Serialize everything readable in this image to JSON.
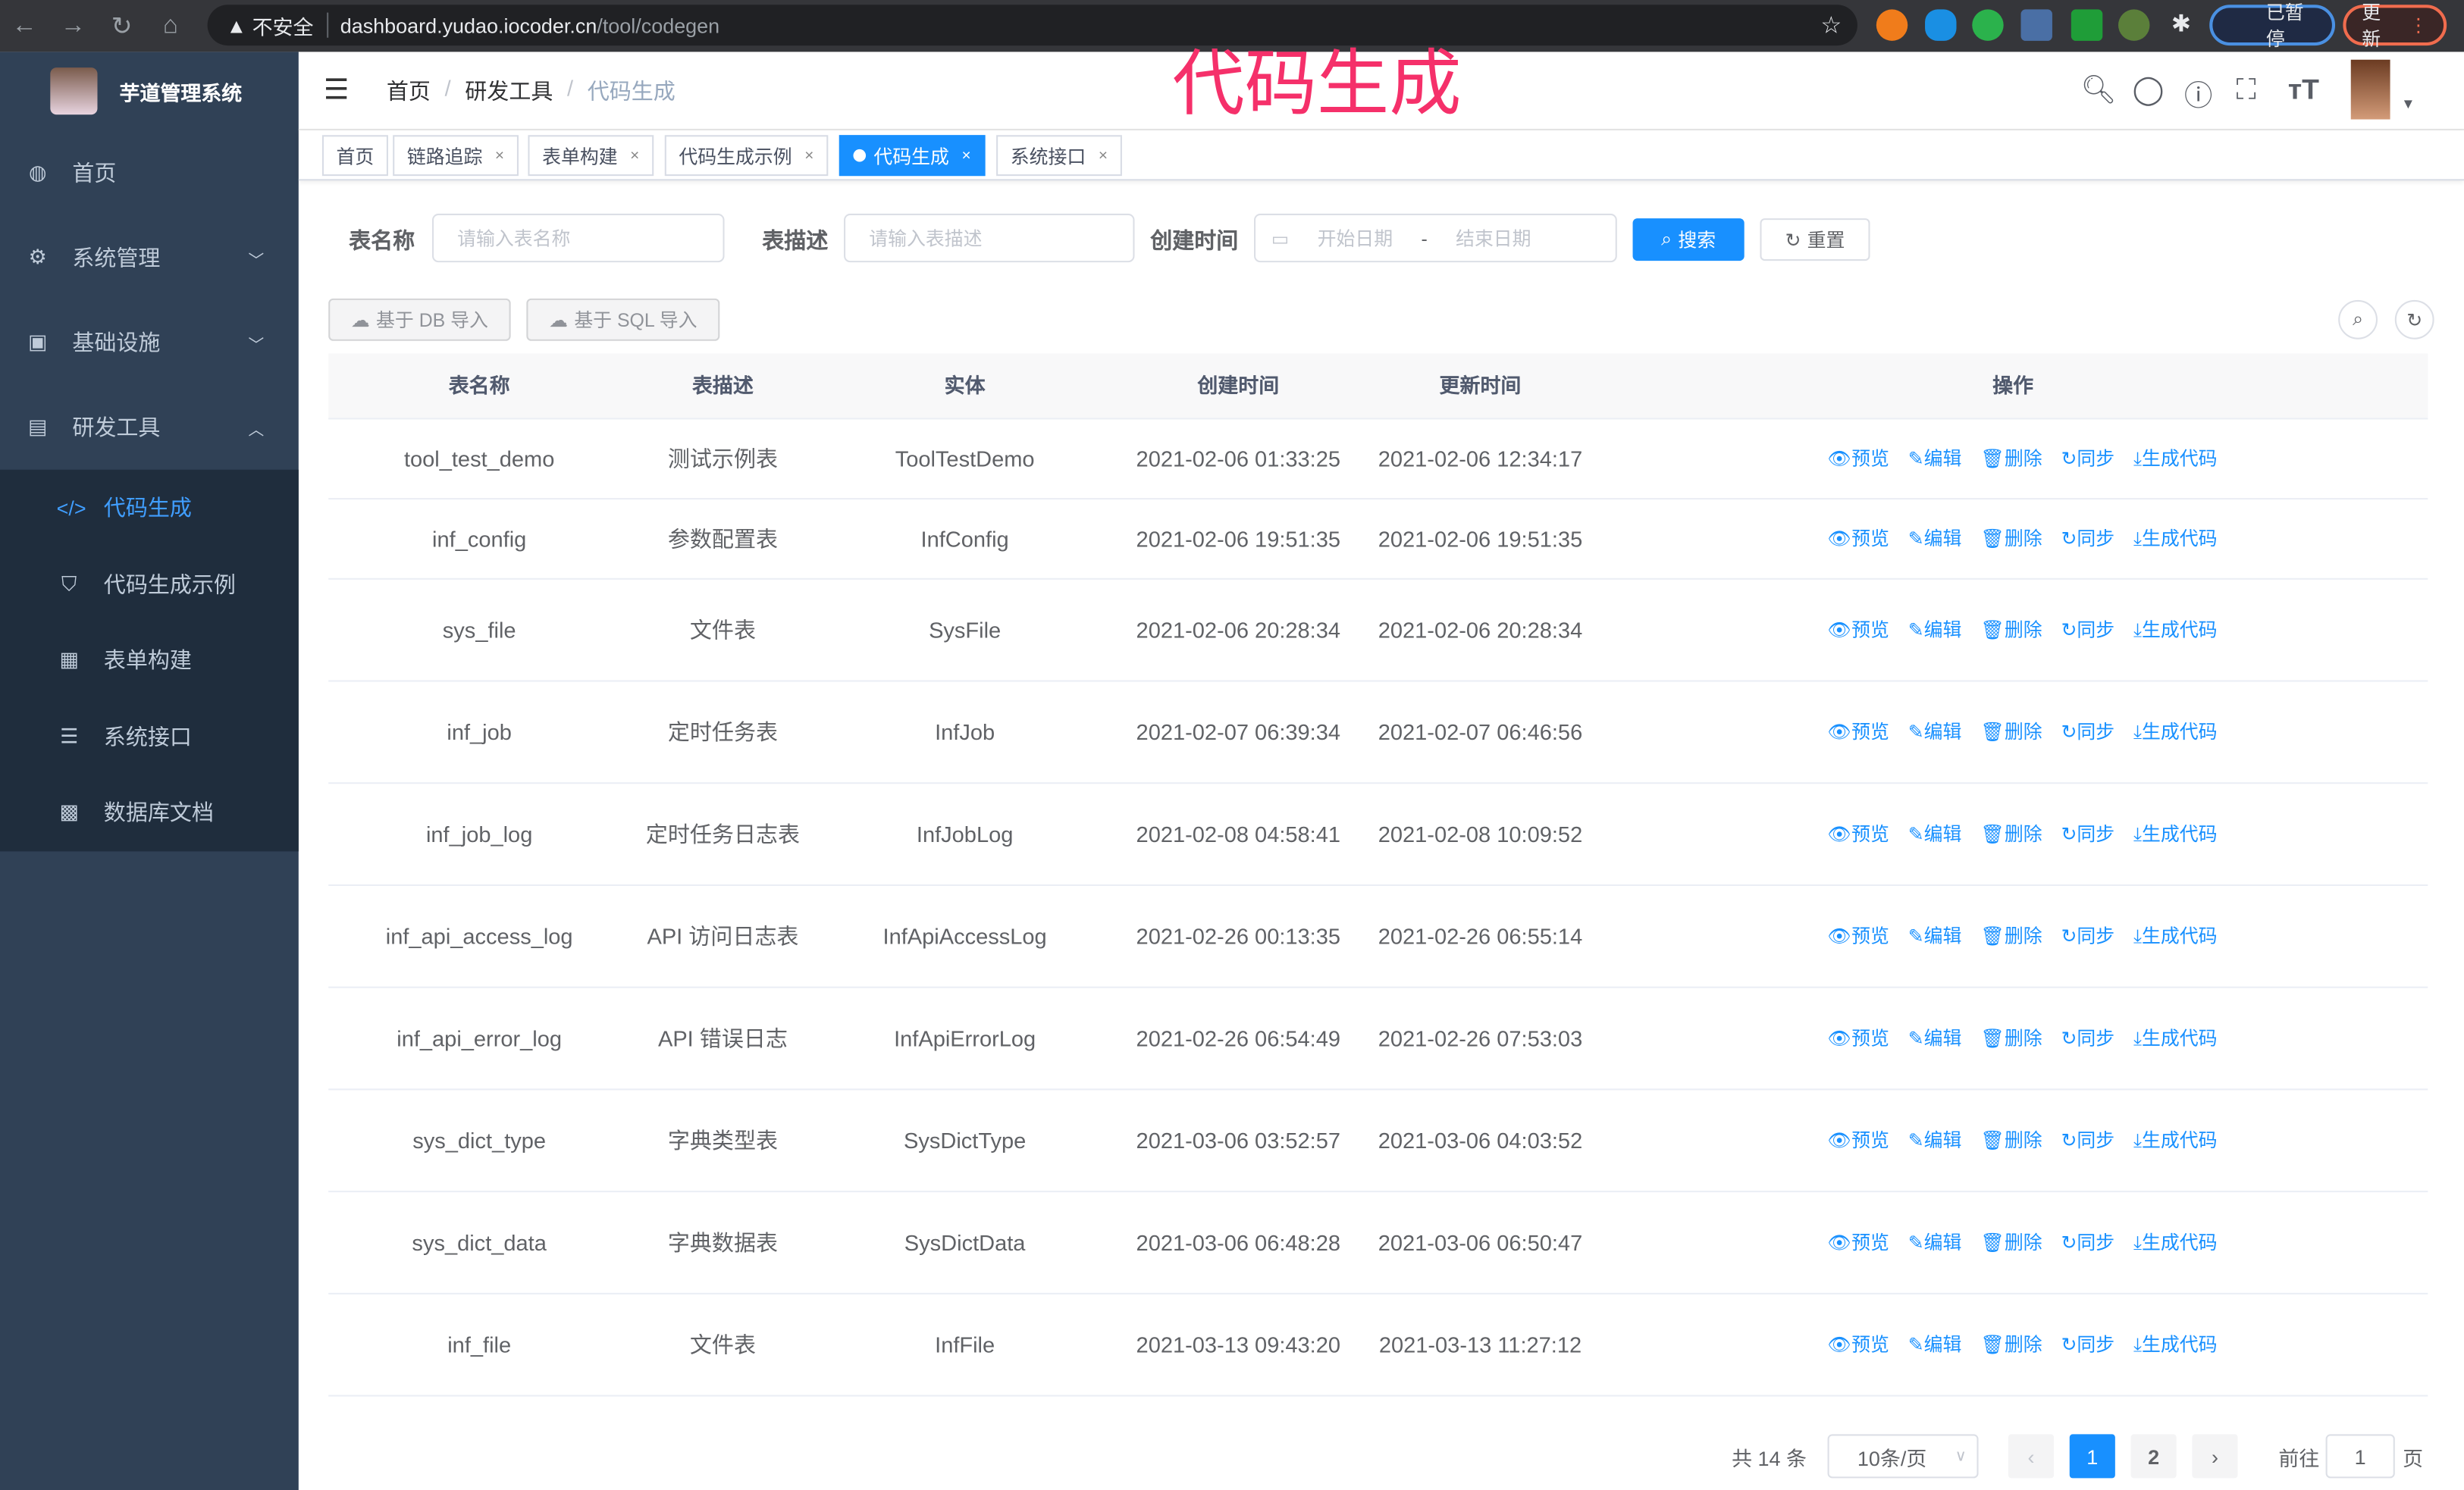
{
  "browser": {
    "security": "不安全",
    "url_host": "dashboard.yudao.iocoder.cn",
    "url_path": "/tool/codegen",
    "paused": "已暂停",
    "update": "更新"
  },
  "overlay_title": "代码生成",
  "sidebar": {
    "title": "芋道管理系统",
    "items": [
      {
        "label": "首页",
        "icon": "dashboard-icon"
      },
      {
        "label": "系统管理",
        "icon": "gear-icon"
      },
      {
        "label": "基础设施",
        "icon": "monitor-icon"
      },
      {
        "label": "研发工具",
        "icon": "toolbox-icon"
      }
    ],
    "sub_items": [
      {
        "label": "代码生成",
        "icon": "code-icon",
        "active": true
      },
      {
        "label": "代码生成示例",
        "icon": "shield-icon"
      },
      {
        "label": "表单构建",
        "icon": "form-icon"
      },
      {
        "label": "系统接口",
        "icon": "sliders-icon"
      },
      {
        "label": "数据库文档",
        "icon": "table-icon"
      }
    ]
  },
  "breadcrumb": [
    "首页",
    "研发工具",
    "代码生成"
  ],
  "tags": [
    {
      "label": "首页"
    },
    {
      "label": "链路追踪"
    },
    {
      "label": "表单构建"
    },
    {
      "label": "代码生成示例"
    },
    {
      "label": "代码生成",
      "active": true
    },
    {
      "label": "系统接口"
    }
  ],
  "search": {
    "name_label": "表名称",
    "name_placeholder": "请输入表名称",
    "desc_label": "表描述",
    "desc_placeholder": "请输入表描述",
    "time_label": "创建时间",
    "start_placeholder": "开始日期",
    "range_sep": "-",
    "end_placeholder": "结束日期",
    "search_btn": "搜索",
    "reset_btn": "重置"
  },
  "toolbar": {
    "db_import": "基于 DB 导入",
    "sql_import": "基于 SQL 导入"
  },
  "table": {
    "columns": [
      "表名称",
      "表描述",
      "实体",
      "创建时间",
      "更新时间",
      "操作"
    ],
    "actions": [
      "预览",
      "编辑",
      "删除",
      "同步",
      "生成代码"
    ],
    "rows": [
      [
        "tool_test_demo",
        "测试示例表",
        "ToolTestDemo",
        "2021-02-06 01:33:25",
        "2021-02-06 12:34:17"
      ],
      [
        "inf_config",
        "参数配置表",
        "InfConfig",
        "2021-02-06 19:51:35",
        "2021-02-06 19:51:35"
      ],
      [
        "sys_file",
        "文件表",
        "SysFile",
        "2021-02-06 20:28:34",
        "2021-02-06 20:28:34"
      ],
      [
        "inf_job",
        "定时任务表",
        "InfJob",
        "2021-02-07 06:39:34",
        "2021-02-07 06:46:56"
      ],
      [
        "inf_job_log",
        "定时任务日志表",
        "InfJobLog",
        "2021-02-08 04:58:41",
        "2021-02-08 10:09:52"
      ],
      [
        "inf_api_access_log",
        "API 访问日志表",
        "InfApiAccessLog",
        "2021-02-26 00:13:35",
        "2021-02-26 06:55:14"
      ],
      [
        "inf_api_error_log",
        "API 错误日志",
        "InfApiErrorLog",
        "2021-02-26 06:54:49",
        "2021-02-26 07:53:03"
      ],
      [
        "sys_dict_type",
        "字典类型表",
        "SysDictType",
        "2021-03-06 03:52:57",
        "2021-03-06 04:03:52"
      ],
      [
        "sys_dict_data",
        "字典数据表",
        "SysDictData",
        "2021-03-06 06:48:28",
        "2021-03-06 06:50:47"
      ],
      [
        "inf_file",
        "文件表",
        "InfFile",
        "2021-03-13 09:43:20",
        "2021-03-13 11:27:12"
      ]
    ]
  },
  "pagination": {
    "total": "共 14 条",
    "page_size": "10条/页",
    "pages": [
      "1",
      "2"
    ],
    "current": 1,
    "goto_label": "前往",
    "goto_value": "1",
    "page_unit": "页"
  },
  "colors": {
    "primary": "#1890ff",
    "sidebar_bg": "#304156",
    "submenu_bg": "#1f2d3d",
    "overlay": "#f5306a"
  }
}
